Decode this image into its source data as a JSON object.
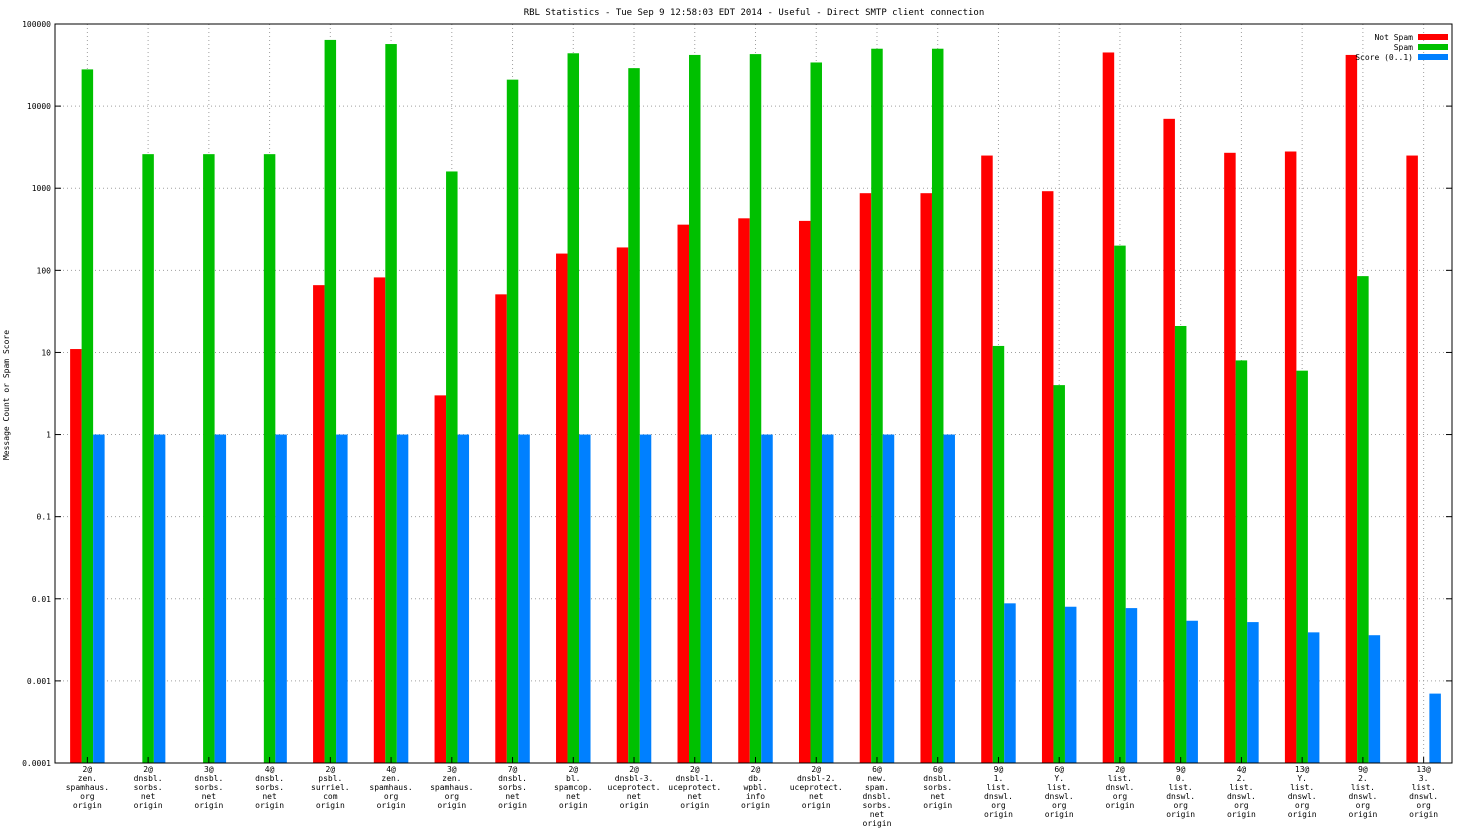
{
  "chart_data": {
    "type": "bar",
    "title": "RBL Statistics - Tue Sep  9 12:58:03 EDT 2014 - Useful - Direct SMTP client connection",
    "ylabel": "Message Count or Spam Score",
    "xlabel": "",
    "yscale": "log",
    "ylim": [
      0.0001,
      100000
    ],
    "yticks": [
      "0.0001",
      "0.001",
      "0.01",
      "0.1",
      "1",
      "10",
      "100",
      "1000",
      "10000",
      "100000"
    ],
    "grid": true,
    "legend_position": "top-right",
    "categories": [
      [
        "2@",
        "zen.",
        "spamhaus.",
        "org",
        "origin"
      ],
      [
        "2@",
        "dnsbl.",
        "sorbs.",
        "net",
        "origin"
      ],
      [
        "3@",
        "dnsbl.",
        "sorbs.",
        "net",
        "origin"
      ],
      [
        "4@",
        "dnsbl.",
        "sorbs.",
        "net",
        "origin"
      ],
      [
        "2@",
        "psbl.",
        "surriel.",
        "com",
        "origin"
      ],
      [
        "4@",
        "zen.",
        "spamhaus.",
        "org",
        "origin"
      ],
      [
        "3@",
        "zen.",
        "spamhaus.",
        "org",
        "origin"
      ],
      [
        "7@",
        "dnsbl.",
        "sorbs.",
        "net",
        "origin"
      ],
      [
        "2@",
        "bl.",
        "spamcop.",
        "net",
        "origin"
      ],
      [
        "2@",
        "dnsbl-3.",
        "uceprotect.",
        "net",
        "origin"
      ],
      [
        "2@",
        "dnsbl-1.",
        "uceprotect.",
        "net",
        "origin"
      ],
      [
        "2@",
        "db.",
        "wpbl.",
        "info",
        "origin"
      ],
      [
        "2@",
        "dnsbl-2.",
        "uceprotect.",
        "net",
        "origin"
      ],
      [
        "6@",
        "new.",
        "spam.",
        "dnsbl.",
        "sorbs.",
        "net",
        "origin"
      ],
      [
        "6@",
        "dnsbl.",
        "sorbs.",
        "net",
        "origin"
      ],
      [
        "9@",
        "1.",
        "list.",
        "dnswl.",
        "org",
        "origin"
      ],
      [
        "6@",
        "Y.",
        "list.",
        "dnswl.",
        "org",
        "origin"
      ],
      [
        "2@",
        "list.",
        "dnswl.",
        "org",
        "origin"
      ],
      [
        "9@",
        "0.",
        "list.",
        "dnswl.",
        "org",
        "origin"
      ],
      [
        "4@",
        "2.",
        "list.",
        "dnswl.",
        "org",
        "origin"
      ],
      [
        "13@",
        "Y.",
        "list.",
        "dnswl.",
        "org",
        "origin"
      ],
      [
        "9@",
        "2.",
        "list.",
        "dnswl.",
        "org",
        "origin"
      ],
      [
        "13@",
        "3.",
        "list.",
        "dnswl.",
        "org",
        "origin"
      ]
    ],
    "series": [
      {
        "name": "Not Spam",
        "color": "#ff0000",
        "values": [
          11,
          null,
          null,
          null,
          66,
          82,
          3,
          51,
          160,
          190,
          360,
          430,
          400,
          870,
          870,
          2500,
          920,
          45000,
          7000,
          2700,
          2800,
          42000,
          2500
        ]
      },
      {
        "name": "Spam",
        "color": "#00c000",
        "values": [
          28000,
          2600,
          2600,
          2600,
          64000,
          57000,
          1600,
          21000,
          44000,
          29000,
          42000,
          43000,
          34000,
          50000,
          50000,
          12,
          4,
          200,
          21,
          8,
          6,
          85,
          null
        ]
      },
      {
        "name": "Score (0..1)",
        "color": "#0080ff",
        "values": [
          1,
          1,
          1,
          1,
          1,
          1,
          1,
          1,
          1,
          1,
          1,
          1,
          1,
          1,
          1,
          0.0088,
          0.008,
          0.0077,
          0.0054,
          0.0052,
          0.0039,
          0.0036,
          0.0007
        ]
      }
    ]
  }
}
